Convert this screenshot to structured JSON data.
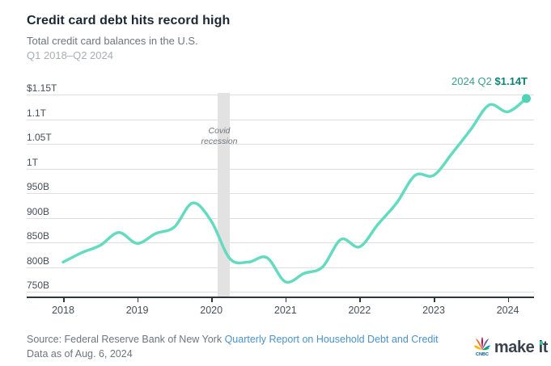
{
  "header": {
    "title": "Credit card debt hits record high",
    "subtitle": "Total credit card balances in the U.S.",
    "period": "Q1 2018–Q2 2024"
  },
  "annotation": {
    "label": "2024 Q2",
    "value": "$1.14T"
  },
  "chart_data": {
    "type": "line",
    "title": "Credit card debt hits record high",
    "subtitle": "Total credit card balances in the U.S.",
    "unit": "USD billions",
    "x": [
      "2018 Q1",
      "2018 Q2",
      "2018 Q3",
      "2018 Q4",
      "2019 Q1",
      "2019 Q2",
      "2019 Q3",
      "2019 Q4",
      "2020 Q1",
      "2020 Q2",
      "2020 Q3",
      "2020 Q4",
      "2021 Q1",
      "2021 Q2",
      "2021 Q3",
      "2021 Q4",
      "2022 Q1",
      "2022 Q2",
      "2022 Q3",
      "2022 Q4",
      "2023 Q1",
      "2023 Q2",
      "2023 Q3",
      "2023 Q4",
      "2024 Q1",
      "2024 Q2"
    ],
    "values": [
      810,
      829,
      844,
      870,
      848,
      868,
      881,
      930,
      893,
      817,
      810,
      819,
      770,
      787,
      800,
      856,
      841,
      887,
      930,
      986,
      986,
      1031,
      1079,
      1129,
      1115,
      1142
    ],
    "x_tick_labels": [
      "2018",
      "2019",
      "2020",
      "2021",
      "2022",
      "2023",
      "2024"
    ],
    "y_tick_labels": [
      "$1.15T",
      "1.1T",
      "1.05T",
      "1T",
      "950B",
      "900B",
      "850B",
      "800B",
      "750B"
    ],
    "y_tick_values": [
      1150,
      1100,
      1050,
      1000,
      950,
      900,
      850,
      800,
      750
    ],
    "ylim": [
      750,
      1150
    ],
    "grid": true,
    "legend": false,
    "line_color": "#64dbc1",
    "end_dot_color": "#50d2b5",
    "annotations": [
      {
        "type": "band",
        "label_line1": "Covid",
        "label_line2": "recession",
        "start_x_index": 8.34,
        "end_x_index": 9.0
      }
    ],
    "last_point_label": "2024 Q2 $1.14T"
  },
  "footer": {
    "source_prefix": "Source: Federal Reserve Bank of New York ",
    "source_link": "Quarterly Report on Household Debt and Credit",
    "data_as_of": "Data as of Aug. 6, 2024",
    "logo": {
      "network": "CNBC",
      "make": "make",
      "it": "it"
    }
  }
}
